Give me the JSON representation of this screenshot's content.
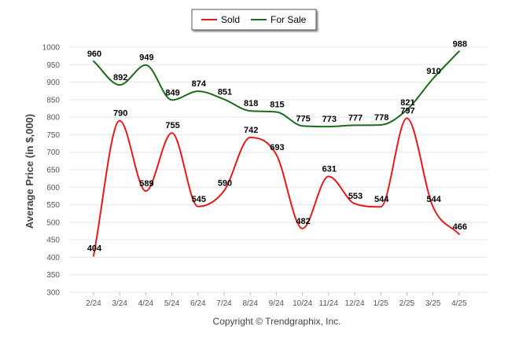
{
  "chart_data": {
    "type": "line",
    "categories": [
      "2/24",
      "3/24",
      "4/24",
      "5/24",
      "6/24",
      "7/24",
      "8/24",
      "9/24",
      "10/24",
      "11/24",
      "12/24",
      "1/25",
      "2/25",
      "3/25",
      "4/25"
    ],
    "series": [
      {
        "name": "Sold",
        "color": "#e41a1c",
        "values": [
          404,
          790,
          589,
          755,
          545,
          590,
          742,
          693,
          482,
          631,
          553,
          544,
          797,
          544,
          466
        ]
      },
      {
        "name": "For Sale",
        "color": "#1a6b1a",
        "values": [
          960,
          892,
          949,
          849,
          874,
          851,
          818,
          815,
          775,
          773,
          777,
          778,
          821,
          910,
          988
        ]
      }
    ],
    "title": "",
    "xlabel": "",
    "ylabel": "Average Price (in $,000)",
    "ylim": [
      300,
      1000
    ],
    "yticks": [
      300,
      350,
      400,
      450,
      500,
      550,
      600,
      650,
      700,
      750,
      800,
      850,
      900,
      950,
      1000
    ],
    "grid": true,
    "legend_position": "top-center",
    "smooth": true
  },
  "footer": {
    "copyright": "Copyright © Trendgraphix, Inc."
  }
}
